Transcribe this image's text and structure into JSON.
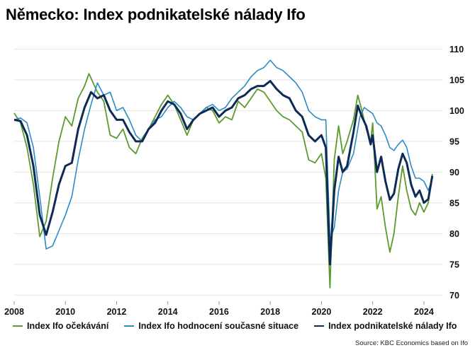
{
  "title": "Německo: Index podnikatelské nálady Ifo",
  "source": "Source: KBC Economics based on Ifo",
  "chart_data": {
    "type": "line",
    "title": "Německo: Index podnikatelské nálady Ifo",
    "xlabel": "",
    "ylabel": "",
    "xlim": [
      2008.0,
      2024.75
    ],
    "ylim": [
      69,
      112
    ],
    "x_ticks": [
      "2008",
      "2010",
      "2012",
      "2014",
      "2016",
      "2018",
      "2020",
      "2022",
      "2024"
    ],
    "y_ticks": [
      "70",
      "75",
      "80",
      "85",
      "90",
      "95",
      "100",
      "105",
      "110"
    ],
    "y_axis_side": "right",
    "grid": "horizontal",
    "legend_position": "bottom",
    "series": [
      {
        "name": "Index Ifo očekávání",
        "color": "#5b9a2c",
        "points": [
          [
            2008.0,
            99.6
          ],
          [
            2008.25,
            98.0
          ],
          [
            2008.5,
            94.0
          ],
          [
            2008.75,
            88.0
          ],
          [
            2009.0,
            79.5
          ],
          [
            2009.25,
            82.0
          ],
          [
            2009.5,
            89.0
          ],
          [
            2009.75,
            95.0
          ],
          [
            2010.0,
            99.0
          ],
          [
            2010.25,
            97.5
          ],
          [
            2010.5,
            102.0
          ],
          [
            2010.75,
            104.0
          ],
          [
            2010.92,
            106.0
          ],
          [
            2011.25,
            103.0
          ],
          [
            2011.5,
            101.5
          ],
          [
            2011.75,
            96.0
          ],
          [
            2012.0,
            95.5
          ],
          [
            2012.25,
            97.0
          ],
          [
            2012.5,
            94.0
          ],
          [
            2012.75,
            93.0
          ],
          [
            2013.0,
            95.5
          ],
          [
            2013.25,
            97.0
          ],
          [
            2013.5,
            99.0
          ],
          [
            2013.75,
            101.0
          ],
          [
            2014.0,
            102.5
          ],
          [
            2014.25,
            101.0
          ],
          [
            2014.5,
            98.5
          ],
          [
            2014.75,
            96.0
          ],
          [
            2015.0,
            98.5
          ],
          [
            2015.25,
            99.5
          ],
          [
            2015.5,
            100.5
          ],
          [
            2015.75,
            100.0
          ],
          [
            2016.0,
            98.0
          ],
          [
            2016.25,
            99.0
          ],
          [
            2016.5,
            98.5
          ],
          [
            2016.75,
            101.5
          ],
          [
            2017.0,
            100.5
          ],
          [
            2017.25,
            102.0
          ],
          [
            2017.5,
            103.5
          ],
          [
            2017.75,
            103.0
          ],
          [
            2018.0,
            101.5
          ],
          [
            2018.25,
            100.0
          ],
          [
            2018.5,
            99.0
          ],
          [
            2018.75,
            98.5
          ],
          [
            2019.0,
            97.5
          ],
          [
            2019.25,
            96.5
          ],
          [
            2019.5,
            92.0
          ],
          [
            2019.75,
            91.5
          ],
          [
            2020.0,
            93.0
          ],
          [
            2020.17,
            89.0
          ],
          [
            2020.33,
            71.2
          ],
          [
            2020.5,
            92.0
          ],
          [
            2020.67,
            97.5
          ],
          [
            2020.83,
            93.0
          ],
          [
            2021.0,
            95.0
          ],
          [
            2021.25,
            98.5
          ],
          [
            2021.42,
            102.5
          ],
          [
            2021.58,
            100.0
          ],
          [
            2021.75,
            97.0
          ],
          [
            2021.92,
            95.0
          ],
          [
            2022.0,
            98.0
          ],
          [
            2022.17,
            84.0
          ],
          [
            2022.33,
            86.0
          ],
          [
            2022.5,
            81.0
          ],
          [
            2022.67,
            77.0
          ],
          [
            2022.83,
            80.0
          ],
          [
            2023.0,
            86.0
          ],
          [
            2023.17,
            91.0
          ],
          [
            2023.33,
            87.0
          ],
          [
            2023.5,
            84.0
          ],
          [
            2023.67,
            83.0
          ],
          [
            2023.83,
            85.0
          ],
          [
            2024.0,
            83.5
          ],
          [
            2024.17,
            85.0
          ],
          [
            2024.33,
            89.7
          ]
        ]
      },
      {
        "name": "Index Ifo hodnocení současné situace",
        "color": "#2b8cc4",
        "points": [
          [
            2008.0,
            98.5
          ],
          [
            2008.25,
            98.8
          ],
          [
            2008.5,
            98.0
          ],
          [
            2008.75,
            94.0
          ],
          [
            2009.0,
            86.0
          ],
          [
            2009.25,
            77.5
          ],
          [
            2009.5,
            78.0
          ],
          [
            2009.75,
            80.5
          ],
          [
            2010.0,
            83.0
          ],
          [
            2010.25,
            86.0
          ],
          [
            2010.5,
            92.0
          ],
          [
            2010.75,
            97.0
          ],
          [
            2011.0,
            101.0
          ],
          [
            2011.25,
            104.5
          ],
          [
            2011.5,
            102.5
          ],
          [
            2011.75,
            103.0
          ],
          [
            2012.0,
            100.0
          ],
          [
            2012.25,
            100.5
          ],
          [
            2012.5,
            98.5
          ],
          [
            2012.75,
            96.0
          ],
          [
            2013.0,
            95.0
          ],
          [
            2013.25,
            97.0
          ],
          [
            2013.5,
            98.5
          ],
          [
            2013.75,
            99.0
          ],
          [
            2014.0,
            100.5
          ],
          [
            2014.25,
            101.5
          ],
          [
            2014.5,
            100.5
          ],
          [
            2014.75,
            99.0
          ],
          [
            2015.0,
            98.5
          ],
          [
            2015.25,
            99.5
          ],
          [
            2015.5,
            100.5
          ],
          [
            2015.75,
            101.0
          ],
          [
            2016.0,
            100.0
          ],
          [
            2016.25,
            100.5
          ],
          [
            2016.5,
            102.0
          ],
          [
            2016.75,
            103.0
          ],
          [
            2017.0,
            104.0
          ],
          [
            2017.25,
            105.5
          ],
          [
            2017.5,
            106.5
          ],
          [
            2017.75,
            107.0
          ],
          [
            2018.0,
            108.2
          ],
          [
            2018.25,
            107.0
          ],
          [
            2018.5,
            106.5
          ],
          [
            2018.75,
            105.5
          ],
          [
            2019.0,
            104.5
          ],
          [
            2019.25,
            103.0
          ],
          [
            2019.5,
            100.0
          ],
          [
            2019.75,
            99.0
          ],
          [
            2020.0,
            98.5
          ],
          [
            2020.17,
            98.5
          ],
          [
            2020.33,
            79.0
          ],
          [
            2020.5,
            81.0
          ],
          [
            2020.67,
            87.0
          ],
          [
            2020.83,
            90.0
          ],
          [
            2021.0,
            90.5
          ],
          [
            2021.25,
            93.0
          ],
          [
            2021.5,
            99.0
          ],
          [
            2021.67,
            100.5
          ],
          [
            2021.83,
            100.0
          ],
          [
            2022.0,
            99.5
          ],
          [
            2022.17,
            98.0
          ],
          [
            2022.33,
            97.5
          ],
          [
            2022.5,
            96.0
          ],
          [
            2022.67,
            94.0
          ],
          [
            2022.83,
            93.5
          ],
          [
            2023.0,
            94.5
          ],
          [
            2023.17,
            95.2
          ],
          [
            2023.33,
            94.0
          ],
          [
            2023.5,
            91.0
          ],
          [
            2023.67,
            89.0
          ],
          [
            2023.83,
            89.0
          ],
          [
            2024.0,
            88.5
          ],
          [
            2024.17,
            87.0
          ],
          [
            2024.33,
            88.9
          ]
        ]
      },
      {
        "name": "Index podnikatelské nálady Ifo",
        "color": "#0e2a56",
        "points": [
          [
            2008.0,
            98.5
          ],
          [
            2008.25,
            98.3
          ],
          [
            2008.5,
            96.0
          ],
          [
            2008.75,
            91.0
          ],
          [
            2009.0,
            83.0
          ],
          [
            2009.25,
            79.8
          ],
          [
            2009.5,
            83.5
          ],
          [
            2009.75,
            88.0
          ],
          [
            2010.0,
            91.0
          ],
          [
            2010.25,
            91.5
          ],
          [
            2010.5,
            97.0
          ],
          [
            2010.75,
            100.5
          ],
          [
            2011.0,
            103.0
          ],
          [
            2011.25,
            102.0
          ],
          [
            2011.5,
            102.5
          ],
          [
            2011.75,
            100.0
          ],
          [
            2012.0,
            98.5
          ],
          [
            2012.25,
            98.5
          ],
          [
            2012.5,
            96.5
          ],
          [
            2012.75,
            95.0
          ],
          [
            2013.0,
            95.0
          ],
          [
            2013.25,
            97.0
          ],
          [
            2013.5,
            98.0
          ],
          [
            2013.75,
            100.0
          ],
          [
            2014.0,
            101.5
          ],
          [
            2014.25,
            101.0
          ],
          [
            2014.5,
            99.5
          ],
          [
            2014.75,
            97.0
          ],
          [
            2015.0,
            98.5
          ],
          [
            2015.25,
            99.5
          ],
          [
            2015.5,
            100.0
          ],
          [
            2015.75,
            100.5
          ],
          [
            2016.0,
            99.0
          ],
          [
            2016.25,
            100.0
          ],
          [
            2016.5,
            100.5
          ],
          [
            2016.75,
            102.0
          ],
          [
            2017.0,
            102.5
          ],
          [
            2017.25,
            103.5
          ],
          [
            2017.5,
            104.0
          ],
          [
            2017.75,
            104.0
          ],
          [
            2018.0,
            104.8
          ],
          [
            2018.25,
            103.5
          ],
          [
            2018.5,
            102.5
          ],
          [
            2018.75,
            102.0
          ],
          [
            2019.0,
            100.0
          ],
          [
            2019.25,
            99.0
          ],
          [
            2019.5,
            96.0
          ],
          [
            2019.75,
            95.0
          ],
          [
            2020.0,
            96.0
          ],
          [
            2020.17,
            94.0
          ],
          [
            2020.33,
            75.0
          ],
          [
            2020.5,
            87.0
          ],
          [
            2020.67,
            92.5
          ],
          [
            2020.83,
            90.0
          ],
          [
            2021.0,
            91.0
          ],
          [
            2021.25,
            96.5
          ],
          [
            2021.42,
            100.8
          ],
          [
            2021.58,
            99.0
          ],
          [
            2021.75,
            97.5
          ],
          [
            2021.92,
            94.5
          ],
          [
            2022.0,
            96.0
          ],
          [
            2022.17,
            90.0
          ],
          [
            2022.33,
            92.5
          ],
          [
            2022.5,
            88.5
          ],
          [
            2022.67,
            85.5
          ],
          [
            2022.83,
            86.5
          ],
          [
            2023.0,
            90.5
          ],
          [
            2023.17,
            93.0
          ],
          [
            2023.33,
            91.5
          ],
          [
            2023.5,
            88.0
          ],
          [
            2023.67,
            86.0
          ],
          [
            2023.83,
            87.0
          ],
          [
            2024.0,
            85.0
          ],
          [
            2024.17,
            85.6
          ],
          [
            2024.33,
            89.4
          ]
        ]
      }
    ]
  }
}
